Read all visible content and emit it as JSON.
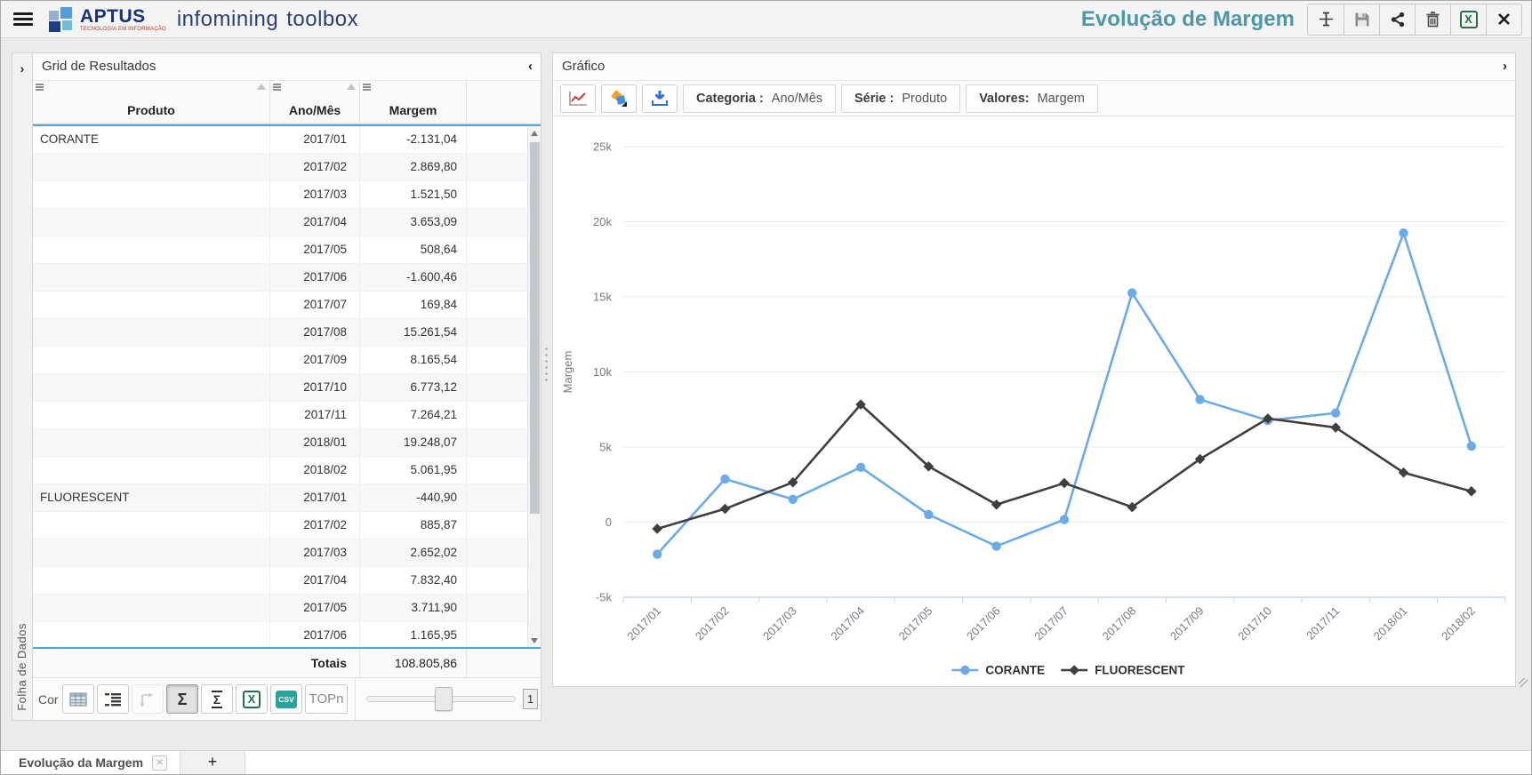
{
  "header": {
    "brand": "APTUS",
    "brand_tagline": "TECNOLOGIA EM INFORMAÇÃO",
    "brand_suffix_1": "infomining",
    "brand_suffix_2": "toolbox",
    "title": "Evolução de Margem"
  },
  "left_strip": {
    "label": "Folha de Dados"
  },
  "grid_panel": {
    "title": "Grid de Resultados",
    "collapse_glyph": "‹",
    "columns": [
      "Produto",
      "Ano/Mês",
      "Margem"
    ],
    "rows": [
      [
        "CORANTE",
        "2017/01",
        "-2.131,04"
      ],
      [
        "",
        "2017/02",
        "2.869,80"
      ],
      [
        "",
        "2017/03",
        "1.521,50"
      ],
      [
        "",
        "2017/04",
        "3.653,09"
      ],
      [
        "",
        "2017/05",
        "508,64"
      ],
      [
        "",
        "2017/06",
        "-1.600,46"
      ],
      [
        "",
        "2017/07",
        "169,84"
      ],
      [
        "",
        "2017/08",
        "15.261,54"
      ],
      [
        "",
        "2017/09",
        "8.165,54"
      ],
      [
        "",
        "2017/10",
        "6.773,12"
      ],
      [
        "",
        "2017/11",
        "7.264,21"
      ],
      [
        "",
        "2018/01",
        "19.248,07"
      ],
      [
        "",
        "2018/02",
        "5.061,95"
      ],
      [
        "FLUORESCENT",
        "2017/01",
        "-440,90"
      ],
      [
        "",
        "2017/02",
        "885,87"
      ],
      [
        "",
        "2017/03",
        "2.652,02"
      ],
      [
        "",
        "2017/04",
        "7.832,40"
      ],
      [
        "",
        "2017/05",
        "3.711,90"
      ],
      [
        "",
        "2017/06",
        "1.165,95"
      ]
    ],
    "totals": {
      "label": "Totais",
      "value": "108.805,86"
    },
    "toolbar": {
      "prefix": "Cor",
      "sum_glyph": "Σ",
      "subtotal_glyph": "Σ",
      "excel_glyph": "X",
      "csv_glyph": "CSV",
      "topn_label": "TOPn",
      "slider_value": "1"
    }
  },
  "chart_panel": {
    "title": "Gráfico",
    "collapse_glyph": "›",
    "toolbar": {
      "category_label": "Categoria :",
      "category_value": "Ano/Mês",
      "series_label": "Série :",
      "series_value": "Produto",
      "values_label": "Valores:",
      "values_value": "Margem"
    }
  },
  "chart_data": {
    "type": "line",
    "title": "",
    "xlabel": "",
    "ylabel": "Margem",
    "ylim": [
      -5000,
      25000
    ],
    "ytick_step": 5000,
    "ytick_labels": [
      "25k",
      "20k",
      "15k",
      "10k",
      "5k",
      "0",
      "-5k"
    ],
    "grid": true,
    "legend_position": "bottom",
    "categories": [
      "2017/01",
      "2017/02",
      "2017/03",
      "2017/04",
      "2017/05",
      "2017/06",
      "2017/07",
      "2017/08",
      "2017/09",
      "2017/10",
      "2017/11",
      "2018/01",
      "2018/02"
    ],
    "series": [
      {
        "name": "CORANTE",
        "color": "#6aabe8",
        "marker": "circle",
        "values": [
          -2131.04,
          2869.8,
          1521.5,
          3653.09,
          508.64,
          -1600.46,
          169.84,
          15261.54,
          8165.54,
          6773.12,
          7264.21,
          19248.07,
          5061.95
        ]
      },
      {
        "name": "FLUORESCENT",
        "color": "#3f3f3f",
        "marker": "diamond",
        "values": [
          -440.9,
          885.87,
          2652.02,
          7832.4,
          3711.9,
          1165.95,
          2600,
          1000,
          4200,
          6900,
          6300,
          3300,
          2050
        ]
      }
    ]
  },
  "tabs": {
    "active": "Evolução da Margem",
    "close_glyph": "✕",
    "add": "+"
  },
  "colors": {
    "title_teal": "#4d97a6",
    "brand_navy": "#16337f",
    "accent_blue": "#57a4dc",
    "series_corante": "#6aabe8",
    "series_fluorescent": "#3f3f3f",
    "excel_green": "#217346",
    "csv_teal": "#26a69a"
  }
}
